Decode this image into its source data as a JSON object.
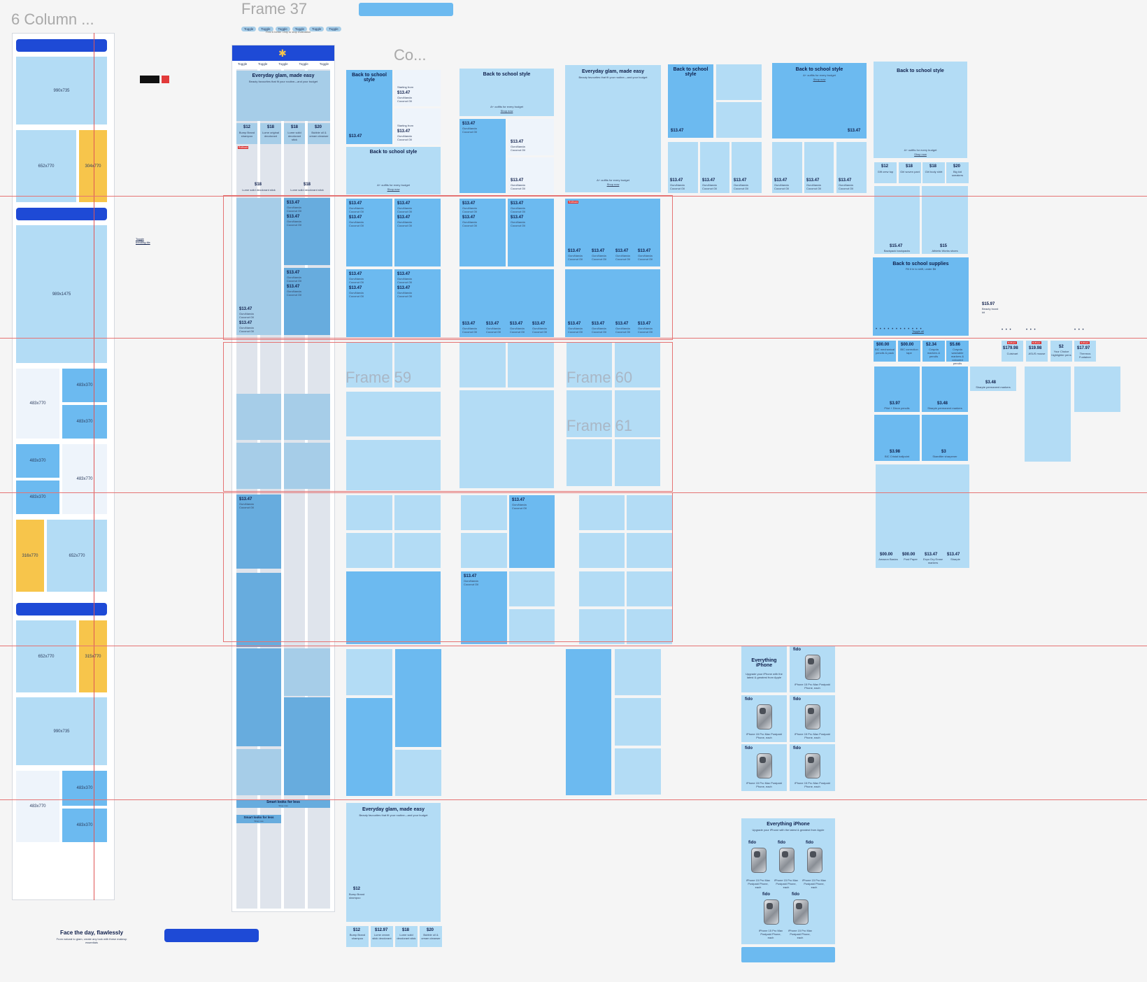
{
  "frames": {
    "six_column": "6 Column ...",
    "frame37": "Frame 37",
    "co": "Co...",
    "frame59": "Frame 59",
    "frame60": "Frame 60",
    "frame61": "Frame 61"
  },
  "grid_labels": {
    "a": "990x735",
    "b": "652x770",
    "c": "304x770",
    "d": "989x1475",
    "e": "483x770",
    "f": "483x370",
    "g": "316x770",
    "h": "652x770",
    "i": "315x770",
    "j": "483x370"
  },
  "frame37": {
    "toggles": [
      "Toggle",
      "Toggle",
      "Toggle",
      "Toggle",
      "Toggle",
      "Toggle"
    ],
    "caption": "First 6 better Only to stop evaluation",
    "tabs": [
      "Toggle",
      "Toggle",
      "Toggle",
      "Toggle",
      "Toggle"
    ],
    "hero_title": "Everyday glam, made easy",
    "hero_sub": "Beauty favourites that fit your routine—and your budget",
    "prices": [
      "$12",
      "$18",
      "$18",
      "$20"
    ],
    "price_items": [
      "Bump Brand shampoo",
      "Lume original deodorant",
      "Lume solid deodorant stick",
      "Bubble oil & cream cleanser"
    ],
    "badge": "Rollback",
    "bottom_price": "$18",
    "bottom_item": "Lume solid deodorant stick",
    "bottom_price2": "$18",
    "bottom_item2": "Lume solid deodorant stick",
    "side_link": "Toggle trending tile",
    "smart_title": "Smart looks for less",
    "smart_sub": "Shop now"
  },
  "product": {
    "price": "$13.47",
    "name": "GuruNanda Coconut Oil",
    "starting": "Starting from",
    "alt_price": "$15.97",
    "alt_name": "Beauty boost kit"
  },
  "school": {
    "title": "Back to school style",
    "sub": "A+ outfits for every budget",
    "link": "Shop now",
    "supplies": "Back to school supplies",
    "supplies_sub": "Fill it in to shift, under $6",
    "small_prices": [
      "$12",
      "$18",
      "$18",
      "$20"
    ],
    "small_items": [
      "Gift crew top",
      "Girl woven pant",
      "Girl body shirt",
      "Big kid sneakers"
    ],
    "card_prices": [
      "$15.47",
      "$15"
    ],
    "card_items": [
      "Backpack backpacks",
      "Athletic Works shoes"
    ],
    "supply_prices": [
      "$00.00",
      "$00.00",
      "$2.34",
      "$5.66"
    ],
    "supply_items": [
      "BIC mechanical pencils & pack",
      "BIC correction tape",
      "Crayola markers & pencils",
      "Crayola washable markers & coloured pencils"
    ],
    "rollback": "Rollback",
    "roll_prices": [
      "$179.98",
      "$19.98",
      "$2",
      "$17.97"
    ],
    "roll_items": [
      "Cuisinart",
      "ASUS mouse",
      "Your Choice highlighter pens",
      "Thermos Funtainer"
    ],
    "mid_prices": [
      "$3.97",
      "$3.48",
      "$3.48",
      "$3.98",
      "$3"
    ],
    "mid_items": [
      "Pilot + Dixon pencils",
      "Sharpie permanent markers",
      "Sharpie permanent markers",
      "BIC Cristal ballpoint",
      "Staedtler sharpener"
    ],
    "tall_prices": [
      "$00.00",
      "$00.00",
      "$13.47",
      "$13.47"
    ],
    "tall_items": [
      "Amazon Basics",
      "Post Paper",
      "Expo Dry Erase markers",
      "Sharpie"
    ],
    "dots_label": "Toggle all"
  },
  "glam": {
    "title": "Everyday glam, made easy",
    "sub": "Beauty favourites that fit your routine—and your budget",
    "card_price": "$12",
    "card_item": "Bump Brand shampoo",
    "prices": [
      "$12",
      "$12.97",
      "$18",
      "$20"
    ],
    "items": [
      "Bump Brand shampoo",
      "Lume cream stick deodorant",
      "Lume solid deodorant stick",
      "Bubble oil & cream cleanser"
    ]
  },
  "iphone": {
    "title": "Everything iPhone",
    "sub": "Upgrade your iPhone with the latest & greatest from Apple",
    "brand": "fido",
    "caption": "iPhone 15 Pro Max Postpaid Phone, each"
  },
  "face": {
    "title": "Face the day, flawlessly",
    "sub": "From natural to glam, create any look with these makeup essentials"
  },
  "colors": {
    "accent_blue": "#1e4ad6",
    "light_blue": "#b3dcf5",
    "mid_blue": "#6cbaf0",
    "yellow": "#f7c54b",
    "guide_red": "#e57373"
  }
}
